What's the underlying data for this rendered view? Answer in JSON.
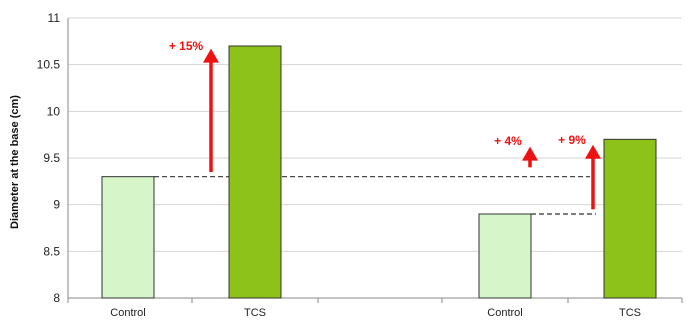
{
  "chart_data": {
    "type": "bar",
    "ylabel": "Diameter at the base (cm)",
    "ylim": [
      8,
      11
    ],
    "yticks": [
      8,
      8.5,
      9,
      9.5,
      10,
      10.5,
      11
    ],
    "grid": true,
    "categories": [
      "Control",
      "TCS",
      "Control",
      "TCS"
    ],
    "values": [
      9.3,
      10.7,
      8.9,
      9.7
    ],
    "bar_colors": [
      "#d6f5c8",
      "#8cc21a",
      "#d6f5c8",
      "#8cc21a"
    ],
    "annotations": [
      {
        "label": "+ 15%",
        "from": 9.35,
        "to": 10.65,
        "ref_value": 9.3
      },
      {
        "label": "+ 4%",
        "from": 9.4,
        "to": 9.6,
        "ref_value": 9.3
      },
      {
        "label": "+ 9%",
        "from": 8.95,
        "to": 9.62,
        "ref_value": 8.9
      }
    ],
    "annotation_color": "#ee1111"
  }
}
